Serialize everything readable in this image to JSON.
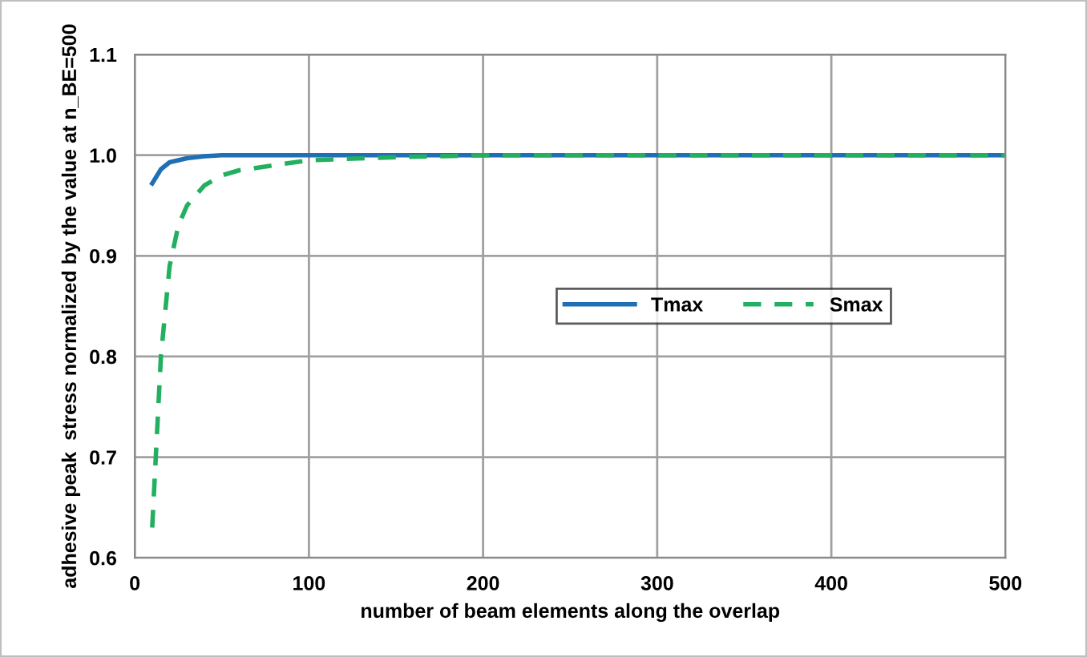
{
  "chart_data": {
    "type": "line",
    "xlabel": "number of beam elements along the overlap",
    "ylabel": "adhesive peak  stress normalized by the value at n_BE=500",
    "xlim": [
      0,
      500
    ],
    "xticks": [
      0,
      100,
      200,
      300,
      400,
      500
    ],
    "ylim": [
      0.6,
      1.1
    ],
    "yticks": [
      {
        "value": 0.6,
        "label": "0.6"
      },
      {
        "value": 0.7,
        "label": "0.7"
      },
      {
        "value": 0.8,
        "label": "0.8"
      },
      {
        "value": 0.9,
        "label": "0.9"
      },
      {
        "value": 1.0,
        "label": "1.0"
      },
      {
        "value": 1.1,
        "label": "1.1"
      }
    ],
    "grid": true,
    "legend": "right",
    "series": [
      {
        "name": "Tmax",
        "color": "#1f6fb4",
        "line_style": "solid",
        "x": [
          10,
          15,
          20,
          30,
          40,
          50,
          100,
          200,
          300,
          400,
          500
        ],
        "values": [
          0.972,
          0.986,
          0.993,
          0.997,
          0.999,
          1.0,
          1.0,
          1.0,
          1.0,
          1.0,
          1.0
        ]
      },
      {
        "name": "Smax",
        "color": "#22b060",
        "line_style": "dashed",
        "x": [
          10,
          15,
          20,
          25,
          30,
          40,
          50,
          60,
          80,
          100,
          150,
          200,
          300,
          400,
          500
        ],
        "values": [
          0.63,
          0.8,
          0.89,
          0.93,
          0.95,
          0.97,
          0.98,
          0.985,
          0.99,
          0.995,
          0.998,
          1.0,
          1.0,
          1.0,
          1.0
        ]
      }
    ]
  }
}
